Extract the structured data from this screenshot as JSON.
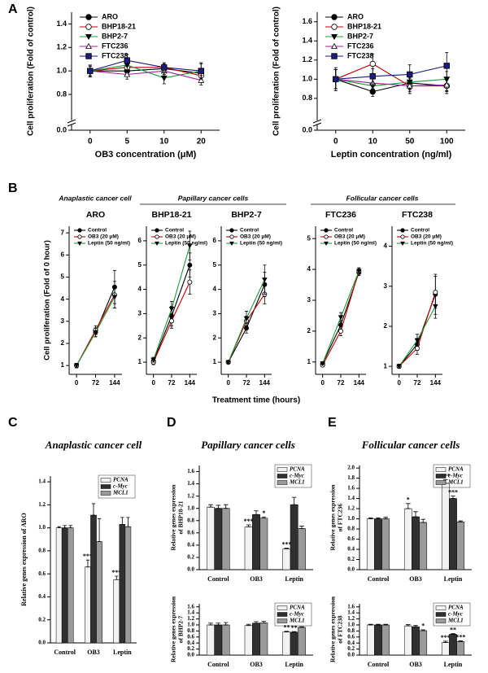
{
  "panel_labels": [
    "A",
    "B",
    "C",
    "D",
    "E"
  ],
  "panel_b": {
    "groups": [
      "Anaplastic cancer cell",
      "Papillary cancer cells",
      "Follicular cancer cells"
    ],
    "x_label": "Treatment time (hours)",
    "y_label": "Cell proliferation (Fold of 0 hour)"
  },
  "panel_titles": {
    "C": "Anaplastic cancer cell",
    "D": "Papillary cancer cells",
    "E": "Follicular cancer cells"
  },
  "chart_data": [
    {
      "type": "line",
      "x_label": "OB3 concentration (μM)",
      "y_label": "Cell proliferation (Fold of control)",
      "categories": [
        "0",
        "5",
        "10",
        "20"
      ],
      "ylim": [
        0,
        1.5
      ],
      "yticks": [
        {
          "value": 0,
          "label": "0.0"
        },
        0.8,
        {
          "value": 1,
          "label": "1.0"
        },
        1.2,
        1.4
      ],
      "axis_break": true,
      "series": [
        {
          "name": "ARO",
          "color": "#000000",
          "marker": "circle",
          "values": [
            1.0,
            1.0,
            1.02,
            0.98
          ],
          "errors": [
            0.04,
            0.04,
            0.03,
            0.04
          ]
        },
        {
          "name": "BHP18-21",
          "color": "#c00000",
          "marker": "open-circle",
          "values": [
            1.0,
            1.03,
            1.03,
            0.96
          ],
          "errors": [
            0.05,
            0.05,
            0.03,
            0.05
          ]
        },
        {
          "name": "BHP2-7",
          "color": "#1f9a3a",
          "marker": "triangle-down",
          "values": [
            1.0,
            1.05,
            0.94,
            1.0
          ],
          "errors": [
            0.05,
            0.06,
            0.05,
            0.06
          ]
        },
        {
          "name": "FTC236",
          "color": "#a020a0",
          "marker": "open-triangle",
          "values": [
            1.0,
            0.97,
            1.0,
            0.92
          ],
          "errors": [
            0.04,
            0.04,
            0.03,
            0.04
          ]
        },
        {
          "name": "FTC238",
          "color": "#1a1a80",
          "marker": "square",
          "values": [
            1.0,
            1.09,
            1.03,
            1.0
          ],
          "errors": [
            0.05,
            0.05,
            0.04,
            0.07
          ]
        }
      ]
    },
    {
      "type": "line",
      "x_label": "Leptin concentration (ng/ml)",
      "y_label": "Cell proliferation (Fold of control)",
      "categories": [
        "0",
        "10",
        "50",
        "100"
      ],
      "ylim": [
        0,
        1.7
      ],
      "yticks": [
        {
          "value": 0,
          "label": "0.0"
        },
        0.8,
        {
          "value": 1,
          "label": "1.0"
        },
        1.2,
        1.4,
        1.6
      ],
      "axis_break": true,
      "series": [
        {
          "name": "ARO",
          "color": "#000000",
          "marker": "circle",
          "values": [
            1.0,
            0.87,
            0.96,
            0.93
          ],
          "errors": [
            0.1,
            0.05,
            0.06,
            0.06
          ]
        },
        {
          "name": "BHP18-21",
          "color": "#c00000",
          "marker": "open-circle",
          "values": [
            1.0,
            1.16,
            0.93,
            0.93
          ],
          "errors": [
            0.12,
            0.1,
            0.08,
            0.08
          ]
        },
        {
          "name": "BHP2-7",
          "color": "#1f9a3a",
          "marker": "triangle-down",
          "values": [
            1.0,
            0.93,
            0.97,
            1.0
          ],
          "errors": [
            0.1,
            0.08,
            0.08,
            0.08
          ]
        },
        {
          "name": "FTC236",
          "color": "#a020a0",
          "marker": "open-triangle",
          "values": [
            1.0,
            0.96,
            0.93,
            0.94
          ],
          "errors": [
            0.1,
            0.06,
            0.06,
            0.06
          ]
        },
        {
          "name": "FTC238",
          "color": "#1a1a80",
          "marker": "square",
          "values": [
            1.0,
            1.03,
            1.05,
            1.14
          ],
          "errors": [
            0.1,
            0.08,
            0.1,
            0.14
          ]
        }
      ]
    },
    {
      "type": "line",
      "title": "ARO",
      "x": [
        0,
        72,
        144
      ],
      "xlim": [
        -28,
        172
      ],
      "ylim": [
        0.6,
        7.3
      ],
      "yticks": [
        1,
        2,
        3,
        4,
        5,
        6,
        7
      ],
      "series": [
        {
          "name": "Control",
          "color": "#000000",
          "marker": "circle",
          "values": [
            1.0,
            2.5,
            4.55
          ],
          "errors": [
            0.1,
            0.2,
            0.75
          ]
        },
        {
          "name": "OB3 (20 μM)",
          "color": "#c00000",
          "marker": "open-circle",
          "values": [
            1.0,
            2.6,
            4.2
          ],
          "errors": [
            0.1,
            0.2,
            0.6
          ]
        },
        {
          "name": "Leptin (50 ng/ml)",
          "color": "#1f9a3a",
          "marker": "triangle-down",
          "values": [
            1.0,
            2.5,
            4.1
          ],
          "errors": [
            0.1,
            0.2,
            0.5
          ]
        }
      ]
    },
    {
      "type": "line",
      "title": "BHP18-21",
      "x": [
        0,
        72,
        144
      ],
      "xlim": [
        -28,
        172
      ],
      "ylim": [
        0.5,
        6.6
      ],
      "yticks": [
        1,
        2,
        3,
        4,
        5,
        6
      ],
      "series": [
        {
          "name": "Control",
          "color": "#000000",
          "marker": "circle",
          "values": [
            1.05,
            2.9,
            5.0
          ],
          "errors": [
            0.1,
            0.4,
            0.5
          ]
        },
        {
          "name": "OB3 (20 μM)",
          "color": "#c00000",
          "marker": "open-circle",
          "values": [
            1.0,
            2.7,
            4.3
          ],
          "errors": [
            0.1,
            0.3,
            0.5
          ]
        },
        {
          "name": "Leptin (50 ng/ml)",
          "color": "#1f9a3a",
          "marker": "triangle-down",
          "values": [
            1.1,
            3.2,
            5.8
          ],
          "errors": [
            0.1,
            0.3,
            0.6
          ]
        }
      ]
    },
    {
      "type": "line",
      "title": "BHP2-7",
      "x": [
        0,
        72,
        144
      ],
      "xlim": [
        -28,
        172
      ],
      "ylim": [
        0.5,
        6.6
      ],
      "yticks": [
        1,
        2,
        3,
        4,
        5,
        6
      ],
      "series": [
        {
          "name": "Control",
          "color": "#000000",
          "marker": "circle",
          "values": [
            1.0,
            2.4,
            4.2
          ],
          "errors": [
            0.05,
            0.2,
            0.5
          ]
        },
        {
          "name": "OB3 (20 μM)",
          "color": "#c00000",
          "marker": "open-circle",
          "values": [
            1.0,
            2.7,
            3.8
          ],
          "errors": [
            0.05,
            0.2,
            0.4
          ]
        },
        {
          "name": "Leptin (50 ng/ml)",
          "color": "#1f9a3a",
          "marker": "triangle-down",
          "values": [
            1.0,
            2.8,
            4.4
          ],
          "errors": [
            0.05,
            0.3,
            0.6
          ]
        }
      ]
    },
    {
      "type": "line",
      "title": "FTC236",
      "x": [
        0,
        72,
        144
      ],
      "xlim": [
        -28,
        172
      ],
      "ylim": [
        0.6,
        5.4
      ],
      "yticks": [
        1,
        2,
        3,
        4,
        5
      ],
      "series": [
        {
          "name": "Control",
          "color": "#000000",
          "marker": "circle",
          "values": [
            0.95,
            2.2,
            3.9
          ],
          "errors": [
            0.05,
            0.15,
            0.1
          ]
        },
        {
          "name": "OB3 (20 μM)",
          "color": "#c00000",
          "marker": "open-circle",
          "values": [
            0.9,
            2.0,
            3.95
          ],
          "errors": [
            0.05,
            0.15,
            0.1
          ]
        },
        {
          "name": "Leptin (50 ng/ml)",
          "color": "#1f9a3a",
          "marker": "triangle-down",
          "values": [
            0.95,
            2.45,
            3.95
          ],
          "errors": [
            0.05,
            0.15,
            0.1
          ]
        }
      ]
    },
    {
      "type": "line",
      "title": "FTC238",
      "x": [
        0,
        72,
        144
      ],
      "xlim": [
        -28,
        172
      ],
      "ylim": [
        0.8,
        4.5
      ],
      "yticks": [
        1,
        2,
        3,
        4
      ],
      "series": [
        {
          "name": "Control",
          "color": "#000000",
          "marker": "circle",
          "values": [
            1.0,
            1.55,
            2.8
          ],
          "errors": [
            0.05,
            0.15,
            0.5
          ]
        },
        {
          "name": "OB3 (20 μM)",
          "color": "#c00000",
          "marker": "open-circle",
          "values": [
            1.0,
            1.45,
            2.85
          ],
          "errors": [
            0.05,
            0.15,
            0.4
          ]
        },
        {
          "name": "Leptin (50 ng/ml)",
          "color": "#1f9a3a",
          "marker": "triangle-down",
          "values": [
            1.0,
            1.65,
            2.5
          ],
          "errors": [
            0.05,
            0.15,
            0.3
          ]
        }
      ]
    },
    {
      "type": "bar",
      "y_label": "Relative genes expression of ARO",
      "categories": [
        "Control",
        "OB3",
        "Leptin"
      ],
      "ylim": [
        0,
        1.45
      ],
      "yticks": [
        {
          "value": 0,
          "label": "0.0"
        },
        0.2,
        0.4,
        0.6,
        0.8,
        {
          "value": 1,
          "label": "1.0"
        },
        1.2,
        1.4
      ],
      "series": [
        {
          "name": "PCNA",
          "color": "#f2f2f2",
          "values": [
            1.0,
            0.66,
            0.55
          ],
          "errors": [
            0.01,
            0.06,
            0.03
          ],
          "stars": [
            null,
            "***",
            "***"
          ]
        },
        {
          "name": "c-Myc",
          "color": "#303030",
          "values": [
            1.0,
            1.11,
            1.03
          ],
          "errors": [
            0.02,
            0.1,
            0.06
          ]
        },
        {
          "name": "MCL1",
          "color": "#9a9a9a",
          "values": [
            1.0,
            0.88,
            1.01
          ],
          "errors": [
            0.02,
            0.2,
            0.08
          ]
        }
      ]
    },
    {
      "type": "bar",
      "y_label": [
        "Relative genes expression",
        "of BHP18-21"
      ],
      "categories": [
        "Control",
        "OB3",
        "Leptin"
      ],
      "ylim": [
        0,
        1.7
      ],
      "yticks": [
        {
          "value": 0,
          "label": "0.0"
        },
        0.2,
        0.4,
        0.6,
        0.8,
        {
          "value": 1,
          "label": "1.0"
        },
        1.2,
        1.4,
        1.6
      ],
      "series": [
        {
          "name": "PCNA",
          "color": "#f2f2f2",
          "values": [
            1.02,
            0.7,
            0.34
          ],
          "errors": [
            0.04,
            0.03,
            0.01
          ],
          "stars": [
            null,
            "***",
            "***"
          ]
        },
        {
          "name": "c-Myc",
          "color": "#303030",
          "values": [
            1.0,
            0.9,
            1.06
          ],
          "errors": [
            0.05,
            0.06,
            0.12
          ]
        },
        {
          "name": "MCL1",
          "color": "#9a9a9a",
          "values": [
            1.0,
            0.84,
            0.67
          ],
          "errors": [
            0.06,
            0.02,
            0.04
          ],
          "stars": [
            null,
            "*",
            null
          ]
        }
      ]
    },
    {
      "type": "bar",
      "y_label": [
        "Relative genes expression",
        "of BHP2-7"
      ],
      "categories": [
        "Control",
        "OB3",
        "Leptin"
      ],
      "ylim": [
        0,
        1.7
      ],
      "yticks": [
        {
          "value": 0,
          "label": "0.0"
        },
        0.2,
        0.4,
        0.6,
        0.8,
        {
          "value": 1,
          "label": "1.0"
        },
        1.2,
        1.4,
        1.6
      ],
      "series": [
        {
          "name": "PCNA",
          "color": "#f2f2f2",
          "values": [
            1.0,
            0.98,
            0.77
          ],
          "errors": [
            0.06,
            0.04,
            0.02
          ],
          "stars": [
            null,
            null,
            "**"
          ]
        },
        {
          "name": "c-Myc",
          "color": "#303030",
          "values": [
            1.0,
            1.06,
            0.76
          ],
          "errors": [
            0.06,
            0.05,
            0.02
          ],
          "stars": [
            null,
            null,
            "**"
          ]
        },
        {
          "name": "MCL1",
          "color": "#9a9a9a",
          "values": [
            1.0,
            1.07,
            0.92
          ],
          "errors": [
            0.08,
            0.05,
            0.02
          ]
        }
      ]
    },
    {
      "type": "bar",
      "y_label": [
        "Relative genes expression",
        "of FTC236"
      ],
      "categories": [
        "Control",
        "OB3",
        "Leptin"
      ],
      "ylim": [
        0,
        2.05
      ],
      "yticks": [
        {
          "value": 0,
          "label": "0.0"
        },
        0.2,
        0.4,
        0.6,
        0.8,
        {
          "value": 1,
          "label": "1.0"
        },
        1.2,
        1.4,
        1.6,
        1.8,
        {
          "value": 2,
          "label": "2.0"
        }
      ],
      "series": [
        {
          "name": "PCNA",
          "color": "#f2f2f2",
          "values": [
            1.0,
            1.2,
            1.7
          ],
          "errors": [
            0.02,
            0.1,
            0.07
          ],
          "stars": [
            null,
            "*",
            "***"
          ]
        },
        {
          "name": "c-Myc",
          "color": "#303030",
          "values": [
            1.0,
            1.04,
            1.4
          ],
          "errors": [
            0.02,
            0.1,
            0.05
          ],
          "stars": [
            null,
            null,
            "***"
          ]
        },
        {
          "name": "MCL1",
          "color": "#9a9a9a",
          "values": [
            1.0,
            0.93,
            0.94
          ],
          "errors": [
            0.03,
            0.06,
            0.02
          ]
        }
      ]
    },
    {
      "type": "bar",
      "y_label": [
        "Relative genes expression",
        "of FTC238"
      ],
      "categories": [
        "Control",
        "OB3",
        "Leptin"
      ],
      "ylim": [
        0,
        1.7
      ],
      "yticks": [
        {
          "value": 0,
          "label": "0.0"
        },
        0.2,
        0.4,
        0.6,
        0.8,
        {
          "value": 1,
          "label": "1.0"
        },
        1.2,
        1.4,
        1.6
      ],
      "series": [
        {
          "name": "PCNA",
          "color": "#f2f2f2",
          "values": [
            1.0,
            0.97,
            0.42
          ],
          "errors": [
            0.02,
            0.04,
            0.04
          ],
          "stars": [
            null,
            null,
            "***"
          ]
        },
        {
          "name": "c-Myc",
          "color": "#303030",
          "values": [
            1.0,
            0.94,
            0.69
          ],
          "errors": [
            0.02,
            0.04,
            0.02
          ],
          "stars": [
            null,
            null,
            "**"
          ]
        },
        {
          "name": "MCL1",
          "color": "#9a9a9a",
          "values": [
            1.0,
            0.81,
            0.45
          ],
          "errors": [
            0.02,
            0.03,
            0.02
          ],
          "stars": [
            null,
            "*",
            "***"
          ]
        }
      ]
    }
  ]
}
